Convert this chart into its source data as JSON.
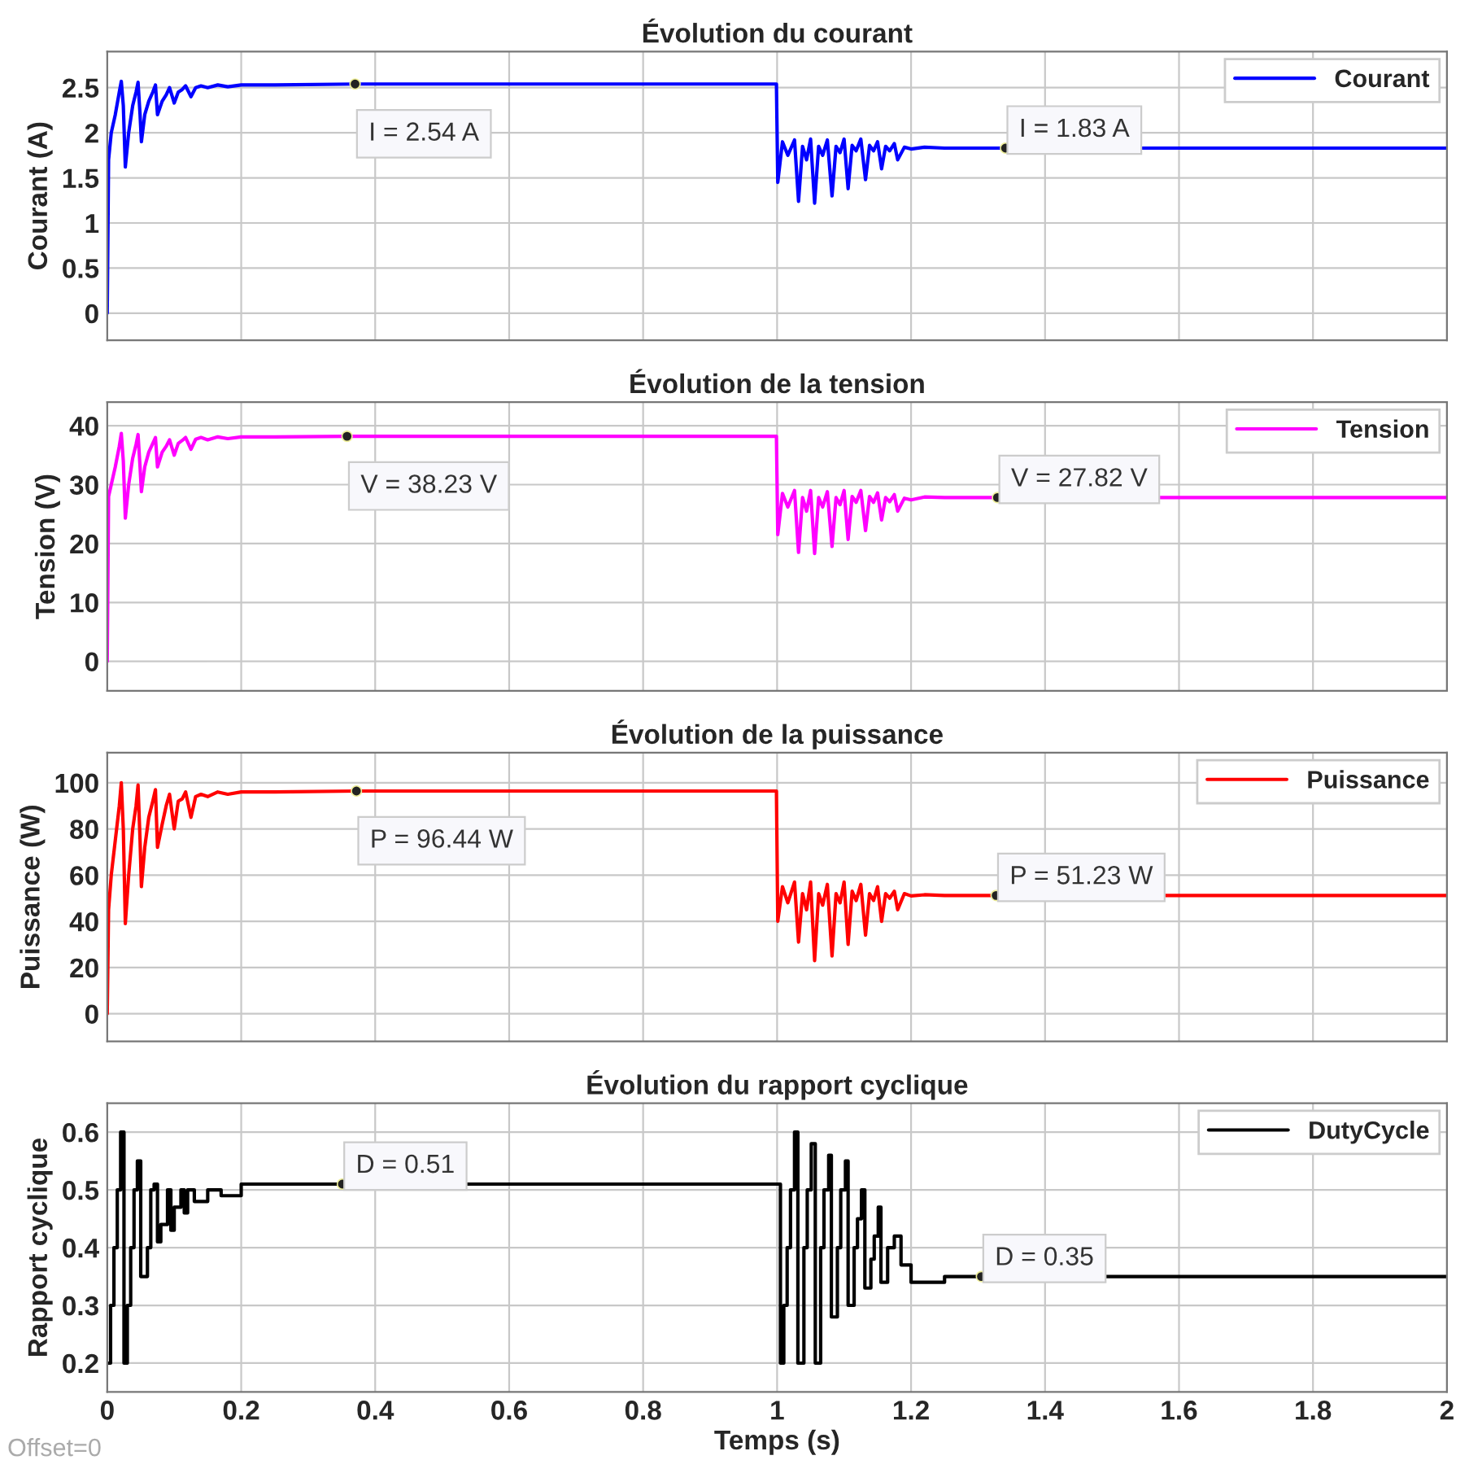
{
  "chart_data": [
    {
      "type": "line",
      "title": "Évolution du courant",
      "ylabel": "Courant (A)",
      "xlim": [
        0,
        2
      ],
      "xticks": [
        0,
        0.2,
        0.4,
        0.6,
        0.8,
        1,
        1.2,
        1.4,
        1.6,
        1.8,
        2
      ],
      "ylim": [
        -0.3,
        2.9
      ],
      "yticks": [
        0,
        0.5,
        1,
        1.5,
        2,
        2.5
      ],
      "tick_labels": "y",
      "grid": true,
      "legend": "top right",
      "series": [
        {
          "name": "Courant",
          "color": "#0000ff",
          "x": [
            0,
            0.002,
            0.006,
            0.012,
            0.018,
            0.021,
            0.024,
            0.027,
            0.032,
            0.038,
            0.043,
            0.046,
            0.049,
            0.051,
            0.056,
            0.062,
            0.068,
            0.072,
            0.075,
            0.082,
            0.088,
            0.093,
            0.1,
            0.106,
            0.112,
            0.117,
            0.125,
            0.132,
            0.14,
            0.15,
            0.165,
            0.18,
            0.2,
            0.25,
            0.37,
            0.999,
            1.001,
            1.008,
            1.016,
            1.026,
            1.032,
            1.038,
            1.044,
            1.05,
            1.056,
            1.062,
            1.068,
            1.075,
            1.082,
            1.088,
            1.094,
            1.1,
            1.106,
            1.112,
            1.118,
            1.125,
            1.132,
            1.138,
            1.144,
            1.15,
            1.156,
            1.162,
            1.168,
            1.175,
            1.18,
            1.19,
            1.2,
            1.22,
            1.25,
            1.341,
            2.0
          ],
          "values": [
            0,
            1.7,
            2.0,
            2.2,
            2.45,
            2.57,
            2.3,
            1.62,
            2.0,
            2.3,
            2.45,
            2.56,
            2.2,
            1.9,
            2.2,
            2.35,
            2.45,
            2.53,
            2.2,
            2.35,
            2.42,
            2.5,
            2.33,
            2.45,
            2.48,
            2.52,
            2.4,
            2.5,
            2.52,
            2.5,
            2.53,
            2.51,
            2.53,
            2.53,
            2.54,
            2.54,
            1.45,
            1.9,
            1.75,
            1.92,
            1.24,
            1.85,
            1.7,
            1.93,
            1.22,
            1.85,
            1.75,
            1.92,
            1.3,
            1.85,
            1.78,
            1.93,
            1.38,
            1.86,
            1.8,
            1.93,
            1.48,
            1.86,
            1.8,
            1.9,
            1.6,
            1.85,
            1.8,
            1.88,
            1.7,
            1.84,
            1.82,
            1.84,
            1.83,
            1.83,
            1.83
          ]
        }
      ],
      "annotations": [
        {
          "text": "I = 2.54 A",
          "x": 0.37,
          "y": 2.54
        },
        {
          "text": "I = 1.83 A",
          "x": 1.341,
          "y": 1.83
        }
      ]
    },
    {
      "type": "line",
      "title": "Évolution de la tension",
      "ylabel": "Tension (V)",
      "xlim": [
        0,
        2
      ],
      "xticks": [
        0,
        0.2,
        0.4,
        0.6,
        0.8,
        1,
        1.2,
        1.4,
        1.6,
        1.8,
        2
      ],
      "ylim": [
        -5,
        44
      ],
      "yticks": [
        0,
        10,
        20,
        30,
        40
      ],
      "tick_labels": "y",
      "grid": true,
      "legend": "top right",
      "series": [
        {
          "name": "Tension",
          "color": "#ff00ff",
          "x": [
            0,
            0.002,
            0.006,
            0.012,
            0.018,
            0.021,
            0.024,
            0.027,
            0.032,
            0.038,
            0.043,
            0.046,
            0.049,
            0.051,
            0.056,
            0.062,
            0.068,
            0.072,
            0.075,
            0.082,
            0.088,
            0.093,
            0.1,
            0.106,
            0.112,
            0.117,
            0.125,
            0.132,
            0.14,
            0.15,
            0.165,
            0.18,
            0.2,
            0.25,
            0.358,
            0.999,
            1.001,
            1.008,
            1.016,
            1.026,
            1.032,
            1.038,
            1.044,
            1.05,
            1.056,
            1.062,
            1.068,
            1.075,
            1.082,
            1.088,
            1.094,
            1.1,
            1.106,
            1.112,
            1.118,
            1.125,
            1.132,
            1.138,
            1.144,
            1.15,
            1.156,
            1.162,
            1.168,
            1.175,
            1.18,
            1.19,
            1.2,
            1.22,
            1.25,
            1.329,
            2.0
          ],
          "values": [
            0,
            28,
            30,
            33,
            36.5,
            38.7,
            34,
            24.3,
            30,
            34.5,
            36.8,
            38.5,
            33,
            28.8,
            33,
            35.5,
            37,
            38,
            33,
            35.5,
            36.5,
            37.6,
            35,
            37,
            37.5,
            38,
            36,
            37.7,
            38,
            37.6,
            38.1,
            37.8,
            38.1,
            38.1,
            38.2,
            38.2,
            21.5,
            28.5,
            26.2,
            29,
            18.5,
            27.8,
            25.5,
            29,
            18.3,
            27.8,
            26.2,
            28.8,
            19.5,
            27.8,
            26.6,
            29,
            20.7,
            28,
            27,
            29,
            22.2,
            28,
            27,
            28.6,
            24,
            27.8,
            27.1,
            28.3,
            25.5,
            27.7,
            27.4,
            27.9,
            27.8,
            27.8,
            27.8
          ]
        }
      ],
      "annotations": [
        {
          "text": "V = 38.23 V",
          "x": 0.358,
          "y": 38.2
        },
        {
          "text": "V = 27.82 V",
          "x": 1.329,
          "y": 27.8
        }
      ]
    },
    {
      "type": "line",
      "title": "Évolution de la puissance",
      "ylabel": "Puissance (W)",
      "xlim": [
        0,
        2
      ],
      "xticks": [
        0,
        0.2,
        0.4,
        0.6,
        0.8,
        1,
        1.2,
        1.4,
        1.6,
        1.8,
        2
      ],
      "ylim": [
        -12,
        113
      ],
      "yticks": [
        0,
        20,
        40,
        60,
        80,
        100
      ],
      "tick_labels": "y",
      "grid": true,
      "legend": "top right",
      "series": [
        {
          "name": "Puissance",
          "color": "#ff0000",
          "x": [
            0,
            0.002,
            0.006,
            0.012,
            0.018,
            0.021,
            0.024,
            0.027,
            0.032,
            0.038,
            0.043,
            0.046,
            0.049,
            0.051,
            0.056,
            0.062,
            0.068,
            0.072,
            0.075,
            0.082,
            0.088,
            0.093,
            0.1,
            0.106,
            0.112,
            0.117,
            0.125,
            0.132,
            0.14,
            0.15,
            0.165,
            0.18,
            0.2,
            0.25,
            0.372,
            0.999,
            1.001,
            1.008,
            1.016,
            1.026,
            1.032,
            1.038,
            1.044,
            1.05,
            1.056,
            1.062,
            1.068,
            1.075,
            1.082,
            1.088,
            1.094,
            1.1,
            1.106,
            1.112,
            1.118,
            1.125,
            1.132,
            1.138,
            1.144,
            1.15,
            1.156,
            1.162,
            1.168,
            1.175,
            1.18,
            1.19,
            1.2,
            1.22,
            1.25,
            1.327,
            2.0
          ],
          "values": [
            0,
            45,
            60,
            75,
            90,
            100,
            80,
            39,
            60,
            80,
            90,
            99,
            75,
            55,
            72,
            85,
            92,
            97,
            72,
            82,
            90,
            95,
            80,
            92,
            93,
            96,
            85,
            94,
            95,
            94,
            96,
            95,
            96,
            96,
            96.4,
            96.4,
            40,
            55,
            48,
            57,
            31,
            52,
            45,
            57,
            23,
            52,
            47,
            56,
            25,
            52,
            48,
            57,
            30,
            53,
            49,
            56,
            34,
            52,
            49,
            55,
            40,
            52,
            50,
            53,
            45,
            52,
            51,
            51.5,
            51.2,
            51.2,
            51.2
          ]
        }
      ],
      "annotations": [
        {
          "text": "P = 96.44 W",
          "x": 0.372,
          "y": 96.4
        },
        {
          "text": "P = 51.23 W",
          "x": 1.327,
          "y": 51.2
        }
      ]
    },
    {
      "type": "step",
      "title": "Évolution du rapport cyclique",
      "xlabel": "Temps (s)",
      "ylabel": "Rapport cyclique",
      "xlim": [
        0,
        2
      ],
      "xticks": [
        0,
        0.2,
        0.4,
        0.6,
        0.8,
        1,
        1.2,
        1.4,
        1.6,
        1.8,
        2
      ],
      "ylim": [
        0.15,
        0.65
      ],
      "yticks": [
        0.2,
        0.3,
        0.4,
        0.5,
        0.6
      ],
      "grid": true,
      "legend": "top right",
      "series": [
        {
          "name": "DutyCycle",
          "color": "#000000",
          "x": [
            0,
            0.005,
            0.01,
            0.015,
            0.02,
            0.025,
            0.03,
            0.035,
            0.04,
            0.045,
            0.05,
            0.06,
            0.065,
            0.07,
            0.075,
            0.08,
            0.09,
            0.095,
            0.1,
            0.11,
            0.115,
            0.12,
            0.13,
            0.15,
            0.17,
            0.2,
            0.25,
            0.351,
            1.005,
            1.01,
            1.015,
            1.02,
            1.026,
            1.031,
            1.04,
            1.045,
            1.051,
            1.057,
            1.065,
            1.07,
            1.077,
            1.081,
            1.09,
            1.095,
            1.102,
            1.106,
            1.115,
            1.12,
            1.126,
            1.131,
            1.14,
            1.145,
            1.151,
            1.155,
            1.165,
            1.175,
            1.185,
            1.2,
            1.25,
            1.305,
            2.0
          ],
          "values": [
            0.2,
            0.3,
            0.4,
            0.5,
            0.6,
            0.2,
            0.3,
            0.4,
            0.5,
            0.55,
            0.35,
            0.4,
            0.5,
            0.51,
            0.41,
            0.44,
            0.5,
            0.43,
            0.47,
            0.5,
            0.46,
            0.5,
            0.48,
            0.5,
            0.49,
            0.51,
            0.51,
            0.51,
            0.2,
            0.3,
            0.4,
            0.5,
            0.6,
            0.2,
            0.4,
            0.5,
            0.58,
            0.2,
            0.4,
            0.5,
            0.56,
            0.28,
            0.4,
            0.5,
            0.55,
            0.3,
            0.4,
            0.45,
            0.5,
            0.33,
            0.38,
            0.42,
            0.47,
            0.34,
            0.4,
            0.42,
            0.37,
            0.34,
            0.35,
            0.35,
            0.35
          ]
        }
      ],
      "annotations": [
        {
          "text": "D = 0.51",
          "x": 0.351,
          "y": 0.51
        },
        {
          "text": "D = 0.35",
          "x": 1.305,
          "y": 0.35
        },
        "Offset=0"
      ]
    }
  ]
}
